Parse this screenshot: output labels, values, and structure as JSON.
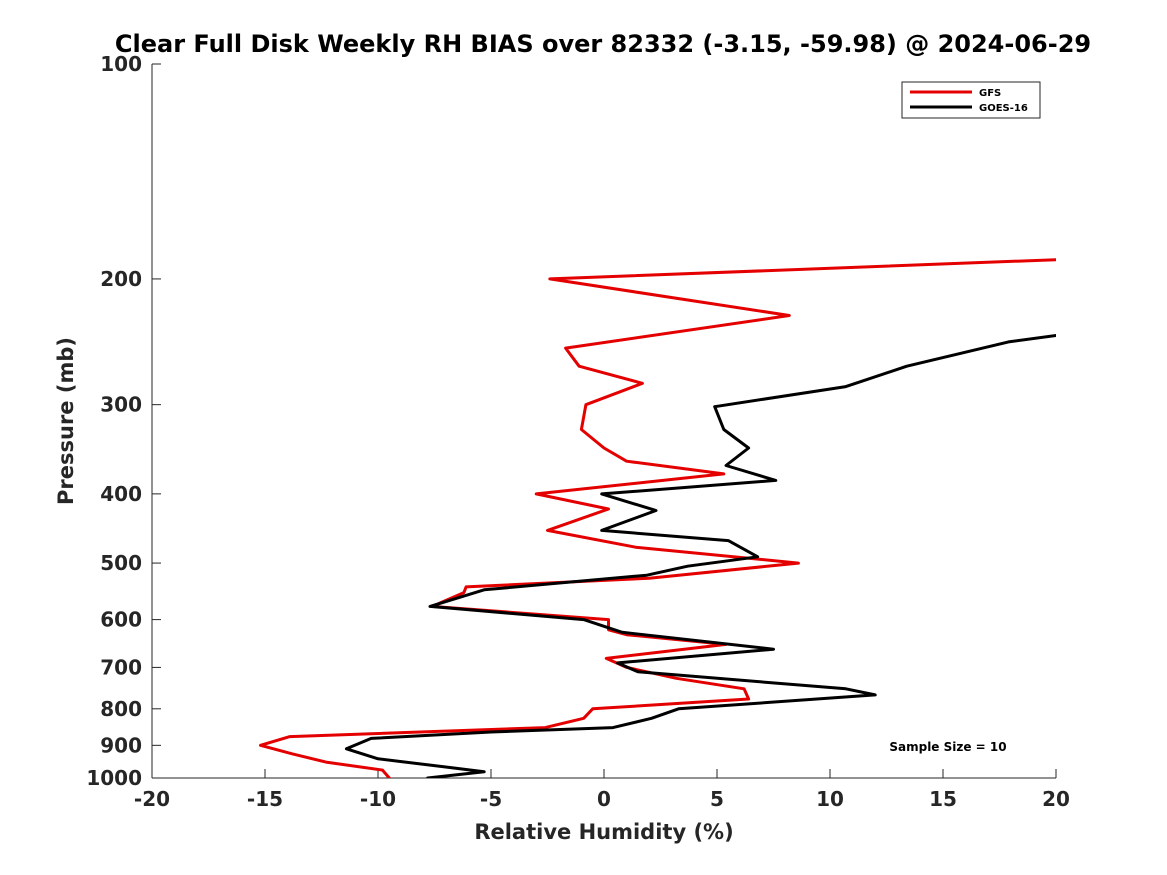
{
  "chart_data": {
    "type": "line",
    "title": "Clear Full Disk Weekly RH BIAS over 82332 (-3.15, -59.98) @ 2024-06-29",
    "xlabel": "Relative Humidity (%)",
    "ylabel": "Pressure (mb)",
    "xlim": [
      -20,
      20
    ],
    "ylim": [
      100,
      1000
    ],
    "y_scale": "log",
    "y_reversed": true,
    "x_ticks": [
      "-20",
      "-15",
      "-10",
      "-5",
      "0",
      "5",
      "10",
      "15",
      "20"
    ],
    "y_ticks": [
      "100",
      "200",
      "300",
      "400",
      "500",
      "600",
      "700",
      "800",
      "900",
      "1000"
    ],
    "grid": false,
    "legend_position": "top-right",
    "annotation": "Sample Size = 10",
    "series": [
      {
        "name": "GFS",
        "color": "#e50000",
        "points": [
          [
            -9.5,
            1000
          ],
          [
            -9.8,
            975
          ],
          [
            -12.3,
            950
          ],
          [
            -13.8,
            925
          ],
          [
            -15.2,
            900
          ],
          [
            -13.9,
            875
          ],
          [
            -2.6,
            850
          ],
          [
            -0.9,
            825
          ],
          [
            -0.5,
            800
          ],
          [
            6.4,
            775
          ],
          [
            6.2,
            750
          ],
          [
            3.2,
            725
          ],
          [
            1.0,
            700
          ],
          [
            0.1,
            680
          ],
          [
            5.4,
            650
          ],
          [
            1.0,
            630
          ],
          [
            0.2,
            620
          ],
          [
            0.2,
            600
          ],
          [
            -7.6,
            575
          ],
          [
            -6.2,
            550
          ],
          [
            -6.1,
            540
          ],
          [
            2.0,
            525
          ],
          [
            8.6,
            500
          ],
          [
            1.4,
            475
          ],
          [
            -2.5,
            450
          ],
          [
            0.2,
            420
          ],
          [
            -3.0,
            400
          ],
          [
            5.3,
            375
          ],
          [
            1.0,
            360
          ],
          [
            0.0,
            345
          ],
          [
            -1.0,
            325
          ],
          [
            -0.8,
            300
          ],
          [
            1.7,
            280
          ],
          [
            -1.1,
            265
          ],
          [
            -1.7,
            250
          ],
          [
            8.2,
            225
          ],
          [
            -2.4,
            200
          ],
          [
            20.0,
            188
          ]
        ]
      },
      {
        "name": "GOES-16",
        "color": "#000000",
        "points": [
          [
            -7.8,
            1000
          ],
          [
            -5.3,
            980
          ],
          [
            -7.0,
            965
          ],
          [
            -10.0,
            940
          ],
          [
            -11.4,
            910
          ],
          [
            -10.3,
            880
          ],
          [
            -5.0,
            862
          ],
          [
            0.4,
            850
          ],
          [
            2.1,
            825
          ],
          [
            3.3,
            800
          ],
          [
            12.0,
            765
          ],
          [
            10.7,
            750
          ],
          [
            1.5,
            710
          ],
          [
            0.6,
            690
          ],
          [
            7.5,
            660
          ],
          [
            0.8,
            625
          ],
          [
            -0.9,
            600
          ],
          [
            -7.7,
            575
          ],
          [
            -5.3,
            545
          ],
          [
            1.9,
            520
          ],
          [
            3.7,
            505
          ],
          [
            6.8,
            490
          ],
          [
            5.5,
            465
          ],
          [
            -0.1,
            450
          ],
          [
            2.3,
            422
          ],
          [
            -0.1,
            400
          ],
          [
            7.6,
            383
          ],
          [
            5.4,
            365
          ],
          [
            6.4,
            345
          ],
          [
            5.3,
            325
          ],
          [
            4.9,
            302
          ],
          [
            10.7,
            283
          ],
          [
            13.4,
            265
          ],
          [
            17.9,
            245
          ],
          [
            20.0,
            240
          ]
        ]
      }
    ]
  }
}
